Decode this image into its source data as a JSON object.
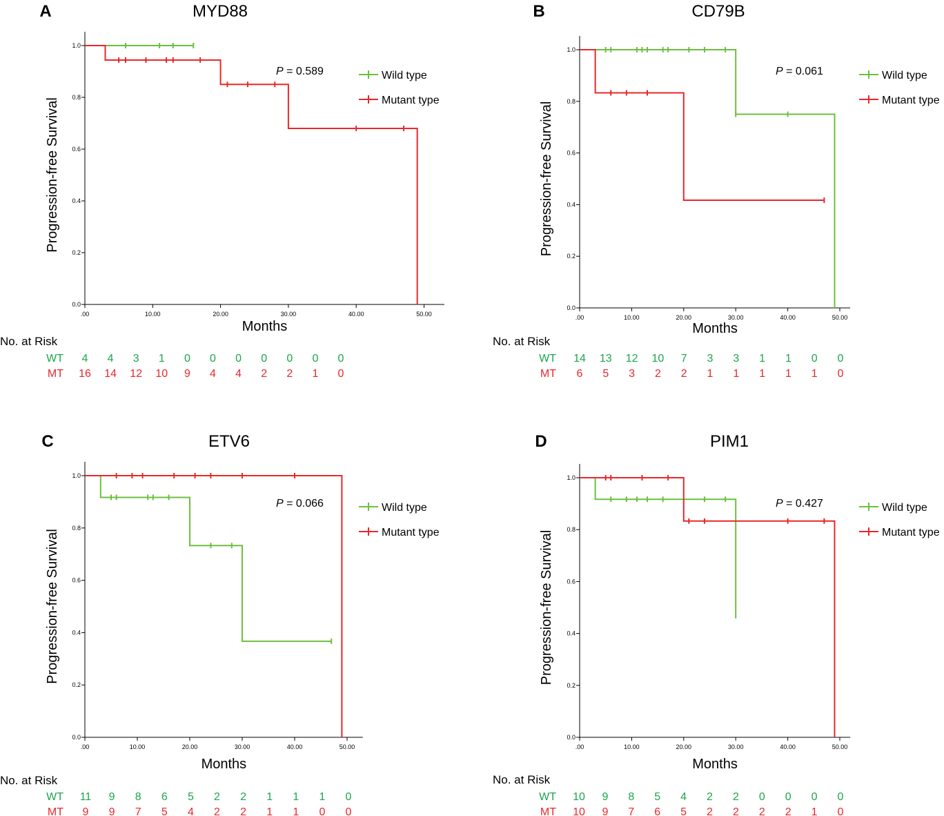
{
  "chart_data": [
    {
      "type": "line",
      "subtype": "kaplan-meier",
      "panel_letter": "A",
      "title": "MYD88",
      "xlabel": "Months",
      "ylabel": "Progression-free Survival",
      "xlim": [
        0,
        53
      ],
      "ylim": [
        0,
        1.0
      ],
      "x_ticks": [
        ".00",
        "10.00",
        "20.00",
        "30.00",
        "40.00",
        "50.00"
      ],
      "y_ticks": [
        "0.0",
        "0.2",
        "0.4",
        "0.6",
        "0.8",
        "1.0"
      ],
      "p_value": {
        "label": "P",
        "text": " = 0.589"
      },
      "legend_position": "right",
      "series": [
        {
          "name": "Wild type",
          "color": "#6cbf3c",
          "steps": [
            [
              0,
              1.0
            ],
            [
              16,
              1.0
            ]
          ],
          "censored": [
            [
              6,
              1.0
            ],
            [
              11,
              1.0
            ],
            [
              13,
              1.0
            ],
            [
              16,
              1.0
            ]
          ]
        },
        {
          "name": "Mutant type",
          "color": "#e8272a",
          "steps": [
            [
              0,
              1.0
            ],
            [
              3,
              0.944
            ],
            [
              20,
              0.85
            ],
            [
              30,
              0.68
            ],
            [
              49,
              0.0
            ]
          ],
          "censored": [
            [
              5,
              0.944
            ],
            [
              6,
              0.944
            ],
            [
              9,
              0.944
            ],
            [
              12,
              0.944
            ],
            [
              13,
              0.944
            ],
            [
              17,
              0.944
            ],
            [
              21,
              0.85
            ],
            [
              24,
              0.85
            ],
            [
              28,
              0.85
            ],
            [
              40,
              0.68
            ],
            [
              47,
              0.68
            ]
          ]
        }
      ],
      "risk_table": {
        "header": "No. at Risk",
        "rows": [
          {
            "label": "WT",
            "color": "#1aa64a",
            "values": [
              "4",
              "4",
              "3",
              "1",
              "0",
              "0",
              "0",
              "0",
              "0",
              "0",
              "0"
            ]
          },
          {
            "label": "MT",
            "color": "#e8272a",
            "values": [
              "16",
              "14",
              "12",
              "10",
              "9",
              "4",
              "4",
              "2",
              "2",
              "1",
              "0"
            ]
          }
        ]
      }
    },
    {
      "type": "line",
      "subtype": "kaplan-meier",
      "panel_letter": "B",
      "title": "CD79B",
      "xlabel": "Months",
      "ylabel": "Progression-free Survival",
      "xlim": [
        0,
        52
      ],
      "ylim": [
        0,
        1.0
      ],
      "x_ticks": [
        ".00",
        "10.00",
        "20.00",
        "30.00",
        "40.00",
        "50.00"
      ],
      "y_ticks": [
        "0.0",
        "0.2",
        "0.4",
        "0.6",
        "0.8",
        "1.0"
      ],
      "p_value": {
        "label": "P",
        "text": " = 0.061"
      },
      "legend_position": "right",
      "series": [
        {
          "name": "Wild type",
          "color": "#6cbf3c",
          "steps": [
            [
              0,
              1.0
            ],
            [
              30,
              0.75
            ],
            [
              49,
              0.0
            ]
          ],
          "censored": [
            [
              5,
              1.0
            ],
            [
              6,
              1.0
            ],
            [
              11,
              1.0
            ],
            [
              12,
              1.0
            ],
            [
              13,
              1.0
            ],
            [
              16,
              1.0
            ],
            [
              17,
              1.0
            ],
            [
              21,
              1.0
            ],
            [
              24,
              1.0
            ],
            [
              28,
              1.0
            ],
            [
              30,
              0.75
            ],
            [
              40,
              0.75
            ]
          ]
        },
        {
          "name": "Mutant type",
          "color": "#e8272a",
          "steps": [
            [
              0,
              1.0
            ],
            [
              3,
              0.833
            ],
            [
              20,
              0.417
            ],
            [
              47,
              0.417
            ]
          ],
          "censored": [
            [
              6,
              0.833
            ],
            [
              9,
              0.833
            ],
            [
              13,
              0.833
            ],
            [
              47,
              0.417
            ]
          ]
        }
      ],
      "risk_table": {
        "header": "No. at Risk",
        "rows": [
          {
            "label": "WT",
            "color": "#1aa64a",
            "values": [
              "14",
              "13",
              "12",
              "10",
              "7",
              "3",
              "3",
              "1",
              "1",
              "0",
              "0"
            ]
          },
          {
            "label": "MT",
            "color": "#e8272a",
            "values": [
              "6",
              "5",
              "3",
              "2",
              "2",
              "1",
              "1",
              "1",
              "1",
              "1",
              "0"
            ]
          }
        ]
      }
    },
    {
      "type": "line",
      "subtype": "kaplan-meier",
      "panel_letter": "C",
      "title": "ETV6",
      "xlabel": "Months",
      "ylabel": "Progression-free Survival",
      "xlim": [
        0,
        53
      ],
      "ylim": [
        0,
        1.0
      ],
      "x_ticks": [
        ".00",
        "10.00",
        "20.00",
        "30.00",
        "40.00",
        "50.00"
      ],
      "y_ticks": [
        "0.0",
        "0.2",
        "0.4",
        "0.6",
        "0.8",
        "1.0"
      ],
      "p_value": {
        "label": "P",
        "text": " = 0.066"
      },
      "legend_position": "right",
      "series": [
        {
          "name": "Wild type",
          "color": "#6cbf3c",
          "steps": [
            [
              0,
              1.0
            ],
            [
              3,
              0.917
            ],
            [
              20,
              0.733
            ],
            [
              30,
              0.367
            ],
            [
              47,
              0.367
            ]
          ],
          "censored": [
            [
              5,
              0.917
            ],
            [
              6,
              0.917
            ],
            [
              12,
              0.917
            ],
            [
              13,
              0.917
            ],
            [
              16,
              0.917
            ],
            [
              24,
              0.733
            ],
            [
              28,
              0.733
            ],
            [
              47,
              0.367
            ]
          ]
        },
        {
          "name": "Mutant type",
          "color": "#e8272a",
          "steps": [
            [
              0,
              1.0
            ],
            [
              49,
              0.0
            ]
          ],
          "censored": [
            [
              6,
              1.0
            ],
            [
              9,
              1.0
            ],
            [
              11,
              1.0
            ],
            [
              17,
              1.0
            ],
            [
              21,
              1.0
            ],
            [
              24,
              1.0
            ],
            [
              30,
              1.0
            ],
            [
              40,
              1.0
            ]
          ]
        }
      ],
      "risk_table": {
        "header": "No. at Risk",
        "rows": [
          {
            "label": "WT",
            "color": "#1aa64a",
            "values": [
              "11",
              "9",
              "8",
              "6",
              "5",
              "2",
              "2",
              "1",
              "1",
              "1",
              "0"
            ]
          },
          {
            "label": "MT",
            "color": "#e8272a",
            "values": [
              "9",
              "9",
              "7",
              "5",
              "4",
              "2",
              "2",
              "1",
              "1",
              "0",
              "0"
            ]
          }
        ]
      }
    },
    {
      "type": "line",
      "subtype": "kaplan-meier",
      "panel_letter": "D",
      "title": "PIM1",
      "xlabel": "Months",
      "ylabel": "Progression-free Survival",
      "xlim": [
        0,
        52
      ],
      "ylim": [
        0,
        1.0
      ],
      "x_ticks": [
        ".00",
        "10.00",
        "20.00",
        "30.00",
        "40.00",
        "50.00"
      ],
      "y_ticks": [
        "0.0",
        "0.2",
        "0.4",
        "0.6",
        "0.8",
        "1.0"
      ],
      "p_value": {
        "label": "P",
        "text": " = 0.427"
      },
      "legend_position": "right",
      "series": [
        {
          "name": "Wild type",
          "color": "#6cbf3c",
          "steps": [
            [
              0,
              1.0
            ],
            [
              3,
              0.917
            ],
            [
              30,
              0.458
            ]
          ],
          "censored": [
            [
              6,
              0.917
            ],
            [
              9,
              0.917
            ],
            [
              11,
              0.917
            ],
            [
              13,
              0.917
            ],
            [
              16,
              0.917
            ],
            [
              24,
              0.917
            ],
            [
              28,
              0.917
            ]
          ]
        },
        {
          "name": "Mutant type",
          "color": "#e8272a",
          "steps": [
            [
              0,
              1.0
            ],
            [
              20,
              0.833
            ],
            [
              49,
              0.0
            ]
          ],
          "censored": [
            [
              5,
              1.0
            ],
            [
              6,
              1.0
            ],
            [
              12,
              1.0
            ],
            [
              17,
              1.0
            ],
            [
              21,
              0.833
            ],
            [
              24,
              0.833
            ],
            [
              40,
              0.833
            ],
            [
              47,
              0.833
            ]
          ]
        }
      ],
      "risk_table": {
        "header": "No. at Risk",
        "rows": [
          {
            "label": "WT",
            "color": "#1aa64a",
            "values": [
              "10",
              "9",
              "8",
              "5",
              "4",
              "2",
              "2",
              "0",
              "0",
              "0",
              "0"
            ]
          },
          {
            "label": "MT",
            "color": "#e8272a",
            "values": [
              "10",
              "9",
              "7",
              "6",
              "5",
              "2",
              "2",
              "2",
              "2",
              "1",
              "0"
            ]
          }
        ]
      }
    }
  ]
}
